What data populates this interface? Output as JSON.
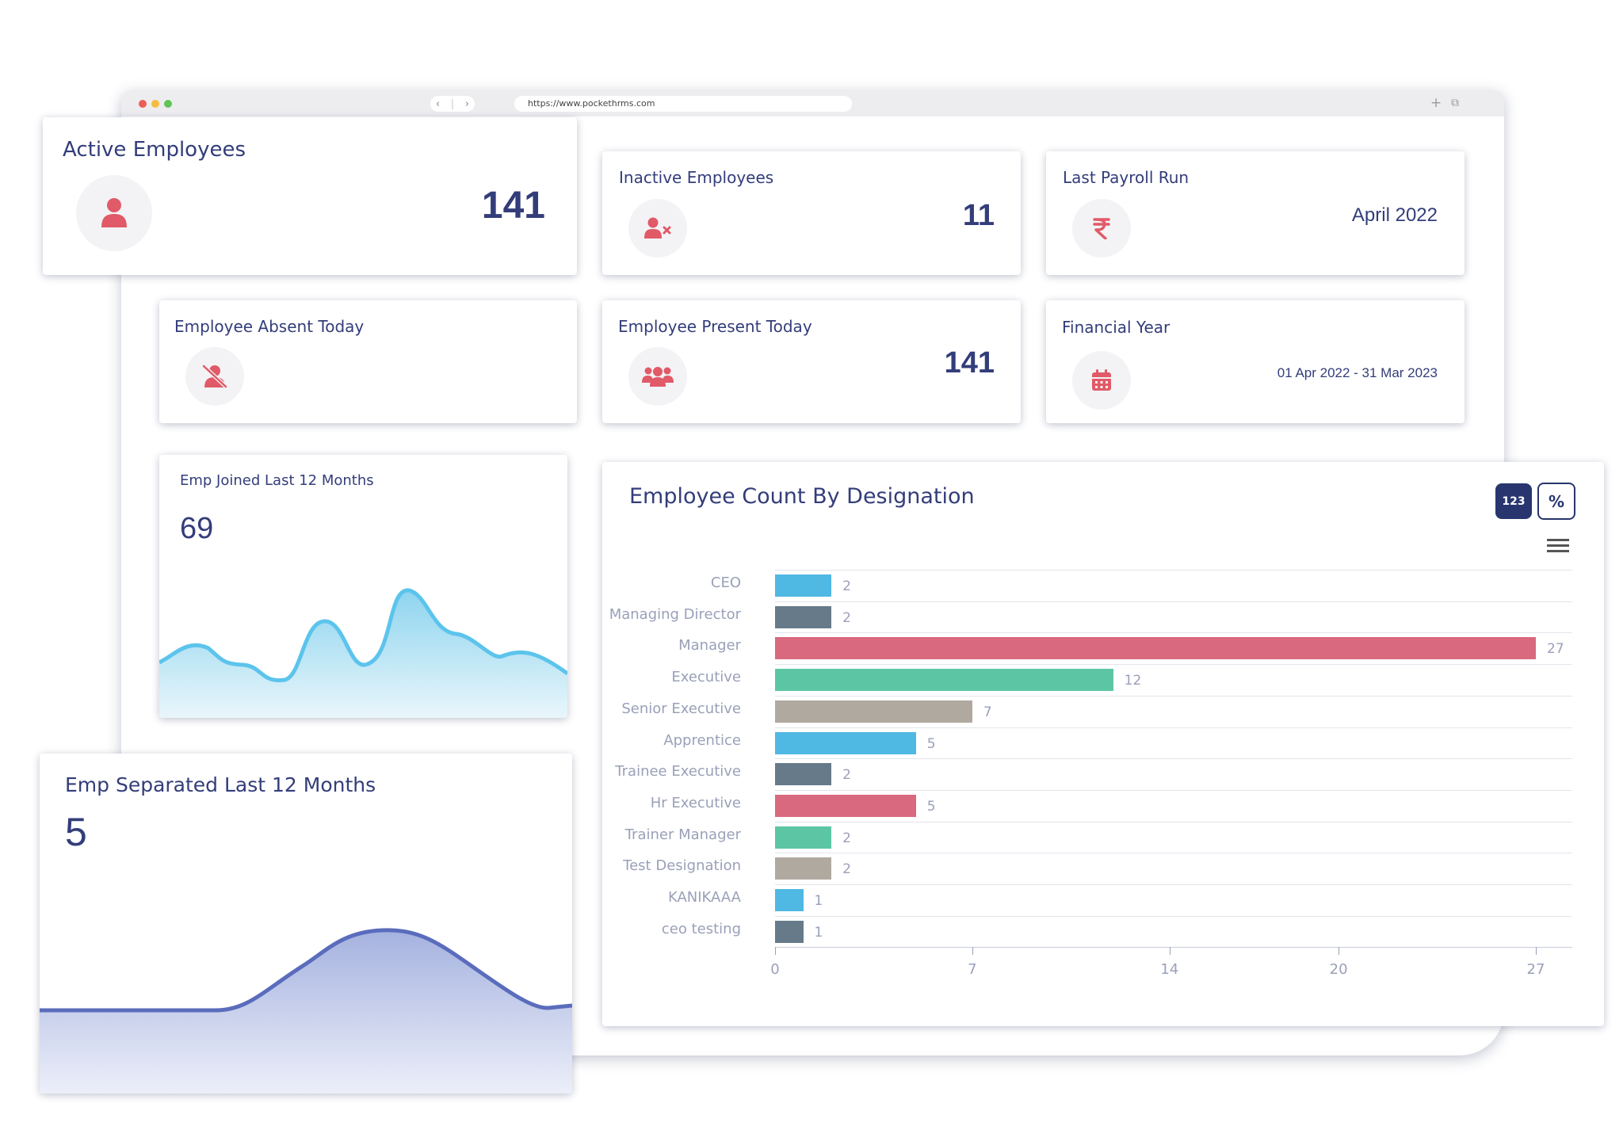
{
  "browser": {
    "url": "https://www.pockethrms.com",
    "nav_back": "‹",
    "nav_forward": "›",
    "new_tab": "+",
    "restore": "⧉"
  },
  "cards": {
    "active_employees": {
      "title": "Active Employees",
      "value": "141",
      "icon": "user-icon"
    },
    "inactive_employees": {
      "title": "Inactive Employees",
      "value": "11",
      "icon": "user-x-icon"
    },
    "last_payroll_run": {
      "title": "Last Payroll Run",
      "value": "April 2022",
      "icon": "rupee-icon"
    },
    "employee_absent_today": {
      "title": "Employee Absent Today",
      "icon": "user-slash-icon"
    },
    "employee_present_today": {
      "title": "Employee Present Today",
      "value": "141",
      "icon": "users-icon"
    },
    "financial_year": {
      "title": "Financial Year",
      "value": "01 Apr 2022 - 31 Mar 2023",
      "icon": "calendar-icon"
    },
    "emp_joined": {
      "title": "Emp Joined Last 12 Months",
      "value": "69"
    },
    "emp_separated": {
      "title": "Emp Separated Last 12 Months",
      "value": "5"
    }
  },
  "designation_chart": {
    "title": "Employee Count By Designation",
    "toggle_count_label": "123",
    "toggle_percent_label": "%",
    "menu_icon": "hamburger-menu-icon"
  },
  "colors": {
    "accent": "#333d7a",
    "icon_red": "#e15a68",
    "blue": "#4fb8e3",
    "slate": "#667a8a",
    "pink": "#d9697e",
    "green": "#5cc6a4",
    "taupe": "#b0a99f"
  },
  "chart_data": {
    "type": "bar",
    "orientation": "horizontal",
    "categories": [
      "CEO",
      "Managing Director",
      "Manager",
      "Executive",
      "Senior Executive",
      "Apprentice",
      "Trainee Executive",
      "Hr Executive",
      "Trainer Manager",
      "Test Designation",
      "KANIKAAA",
      "ceo testing"
    ],
    "values": [
      2,
      2,
      27,
      12,
      7,
      5,
      2,
      5,
      2,
      2,
      1,
      1
    ],
    "colors": [
      "#4fb8e3",
      "#667a8a",
      "#d9697e",
      "#5cc6a4",
      "#b0a99f",
      "#4fb8e3",
      "#667a8a",
      "#d9697e",
      "#5cc6a4",
      "#b0a99f",
      "#4fb8e3",
      "#667a8a"
    ],
    "xlim": [
      0,
      27
    ],
    "xticks": [
      0,
      7,
      14,
      20,
      27
    ],
    "grid": true,
    "title": "Employee Count By Designation"
  }
}
